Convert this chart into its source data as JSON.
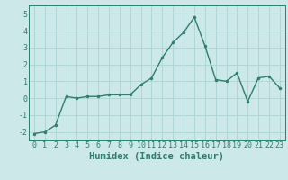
{
  "x": [
    0,
    1,
    2,
    3,
    4,
    5,
    6,
    7,
    8,
    9,
    10,
    11,
    12,
    13,
    14,
    15,
    16,
    17,
    18,
    19,
    20,
    21,
    22,
    23
  ],
  "y": [
    -2.1,
    -2.0,
    -1.6,
    0.1,
    0.0,
    0.1,
    0.1,
    0.2,
    0.2,
    0.2,
    0.8,
    1.2,
    2.4,
    3.3,
    3.9,
    4.8,
    3.1,
    1.1,
    1.0,
    1.5,
    -0.2,
    1.2,
    1.3,
    0.6
  ],
  "line_color": "#2e7d6e",
  "marker": "o",
  "marker_size": 2.0,
  "line_width": 1.0,
  "bg_color": "#cce8e8",
  "grid_color": "#aad4d4",
  "xlabel": "Humidex (Indice chaleur)",
  "xlim": [
    -0.5,
    23.5
  ],
  "ylim": [
    -2.5,
    5.5
  ],
  "yticks": [
    -2,
    -1,
    0,
    1,
    2,
    3,
    4,
    5
  ],
  "xticks": [
    0,
    1,
    2,
    3,
    4,
    5,
    6,
    7,
    8,
    9,
    10,
    11,
    12,
    13,
    14,
    15,
    16,
    17,
    18,
    19,
    20,
    21,
    22,
    23
  ],
  "tick_fontsize": 6.0,
  "xlabel_fontsize": 7.5
}
